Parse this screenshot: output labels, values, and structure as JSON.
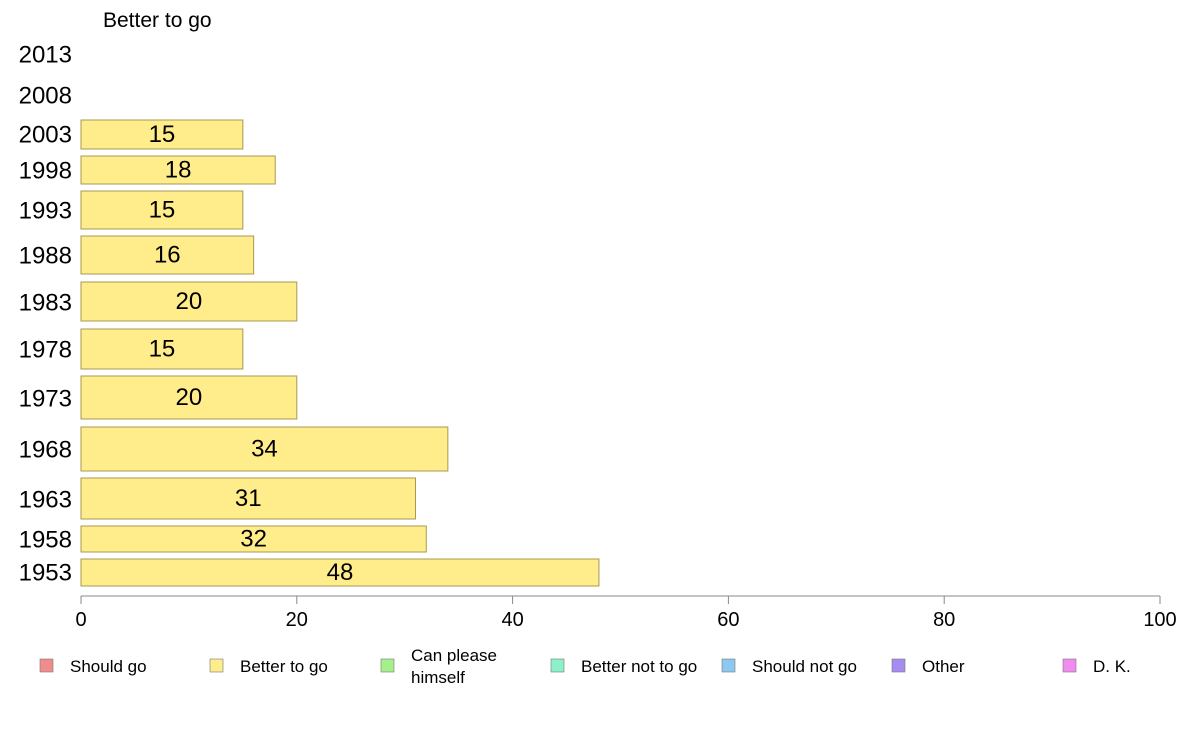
{
  "chart_data": {
    "type": "bar",
    "orientation": "horizontal",
    "title": "Better to go",
    "categories": [
      "2013",
      "2008",
      "2003",
      "1998",
      "1993",
      "1988",
      "1983",
      "1978",
      "1973",
      "1968",
      "1963",
      "1958",
      "1953"
    ],
    "values": [
      null,
      null,
      15,
      18,
      15,
      16,
      20,
      15,
      20,
      34,
      31,
      32,
      48
    ],
    "xlim": [
      0,
      100
    ],
    "xticks": [
      0,
      20,
      40,
      60,
      80,
      100
    ],
    "bar_color": "#FFEC8B",
    "bar_edge_color": "#A89A50",
    "grid": false,
    "legend": {
      "placement": "bottom",
      "entries": [
        {
          "label": "Should go",
          "color": "#F08C8C"
        },
        {
          "label": "Better to go",
          "color": "#FFEC8B"
        },
        {
          "label": "Can please himself",
          "color": "#A6F08C"
        },
        {
          "label": "Better not to go",
          "color": "#8CF0C8"
        },
        {
          "label": "Should not go",
          "color": "#8CC8F0"
        },
        {
          "label": "Other",
          "color": "#A68CF0"
        },
        {
          "label": "D. K.",
          "color": "#F08CF0"
        }
      ]
    }
  }
}
